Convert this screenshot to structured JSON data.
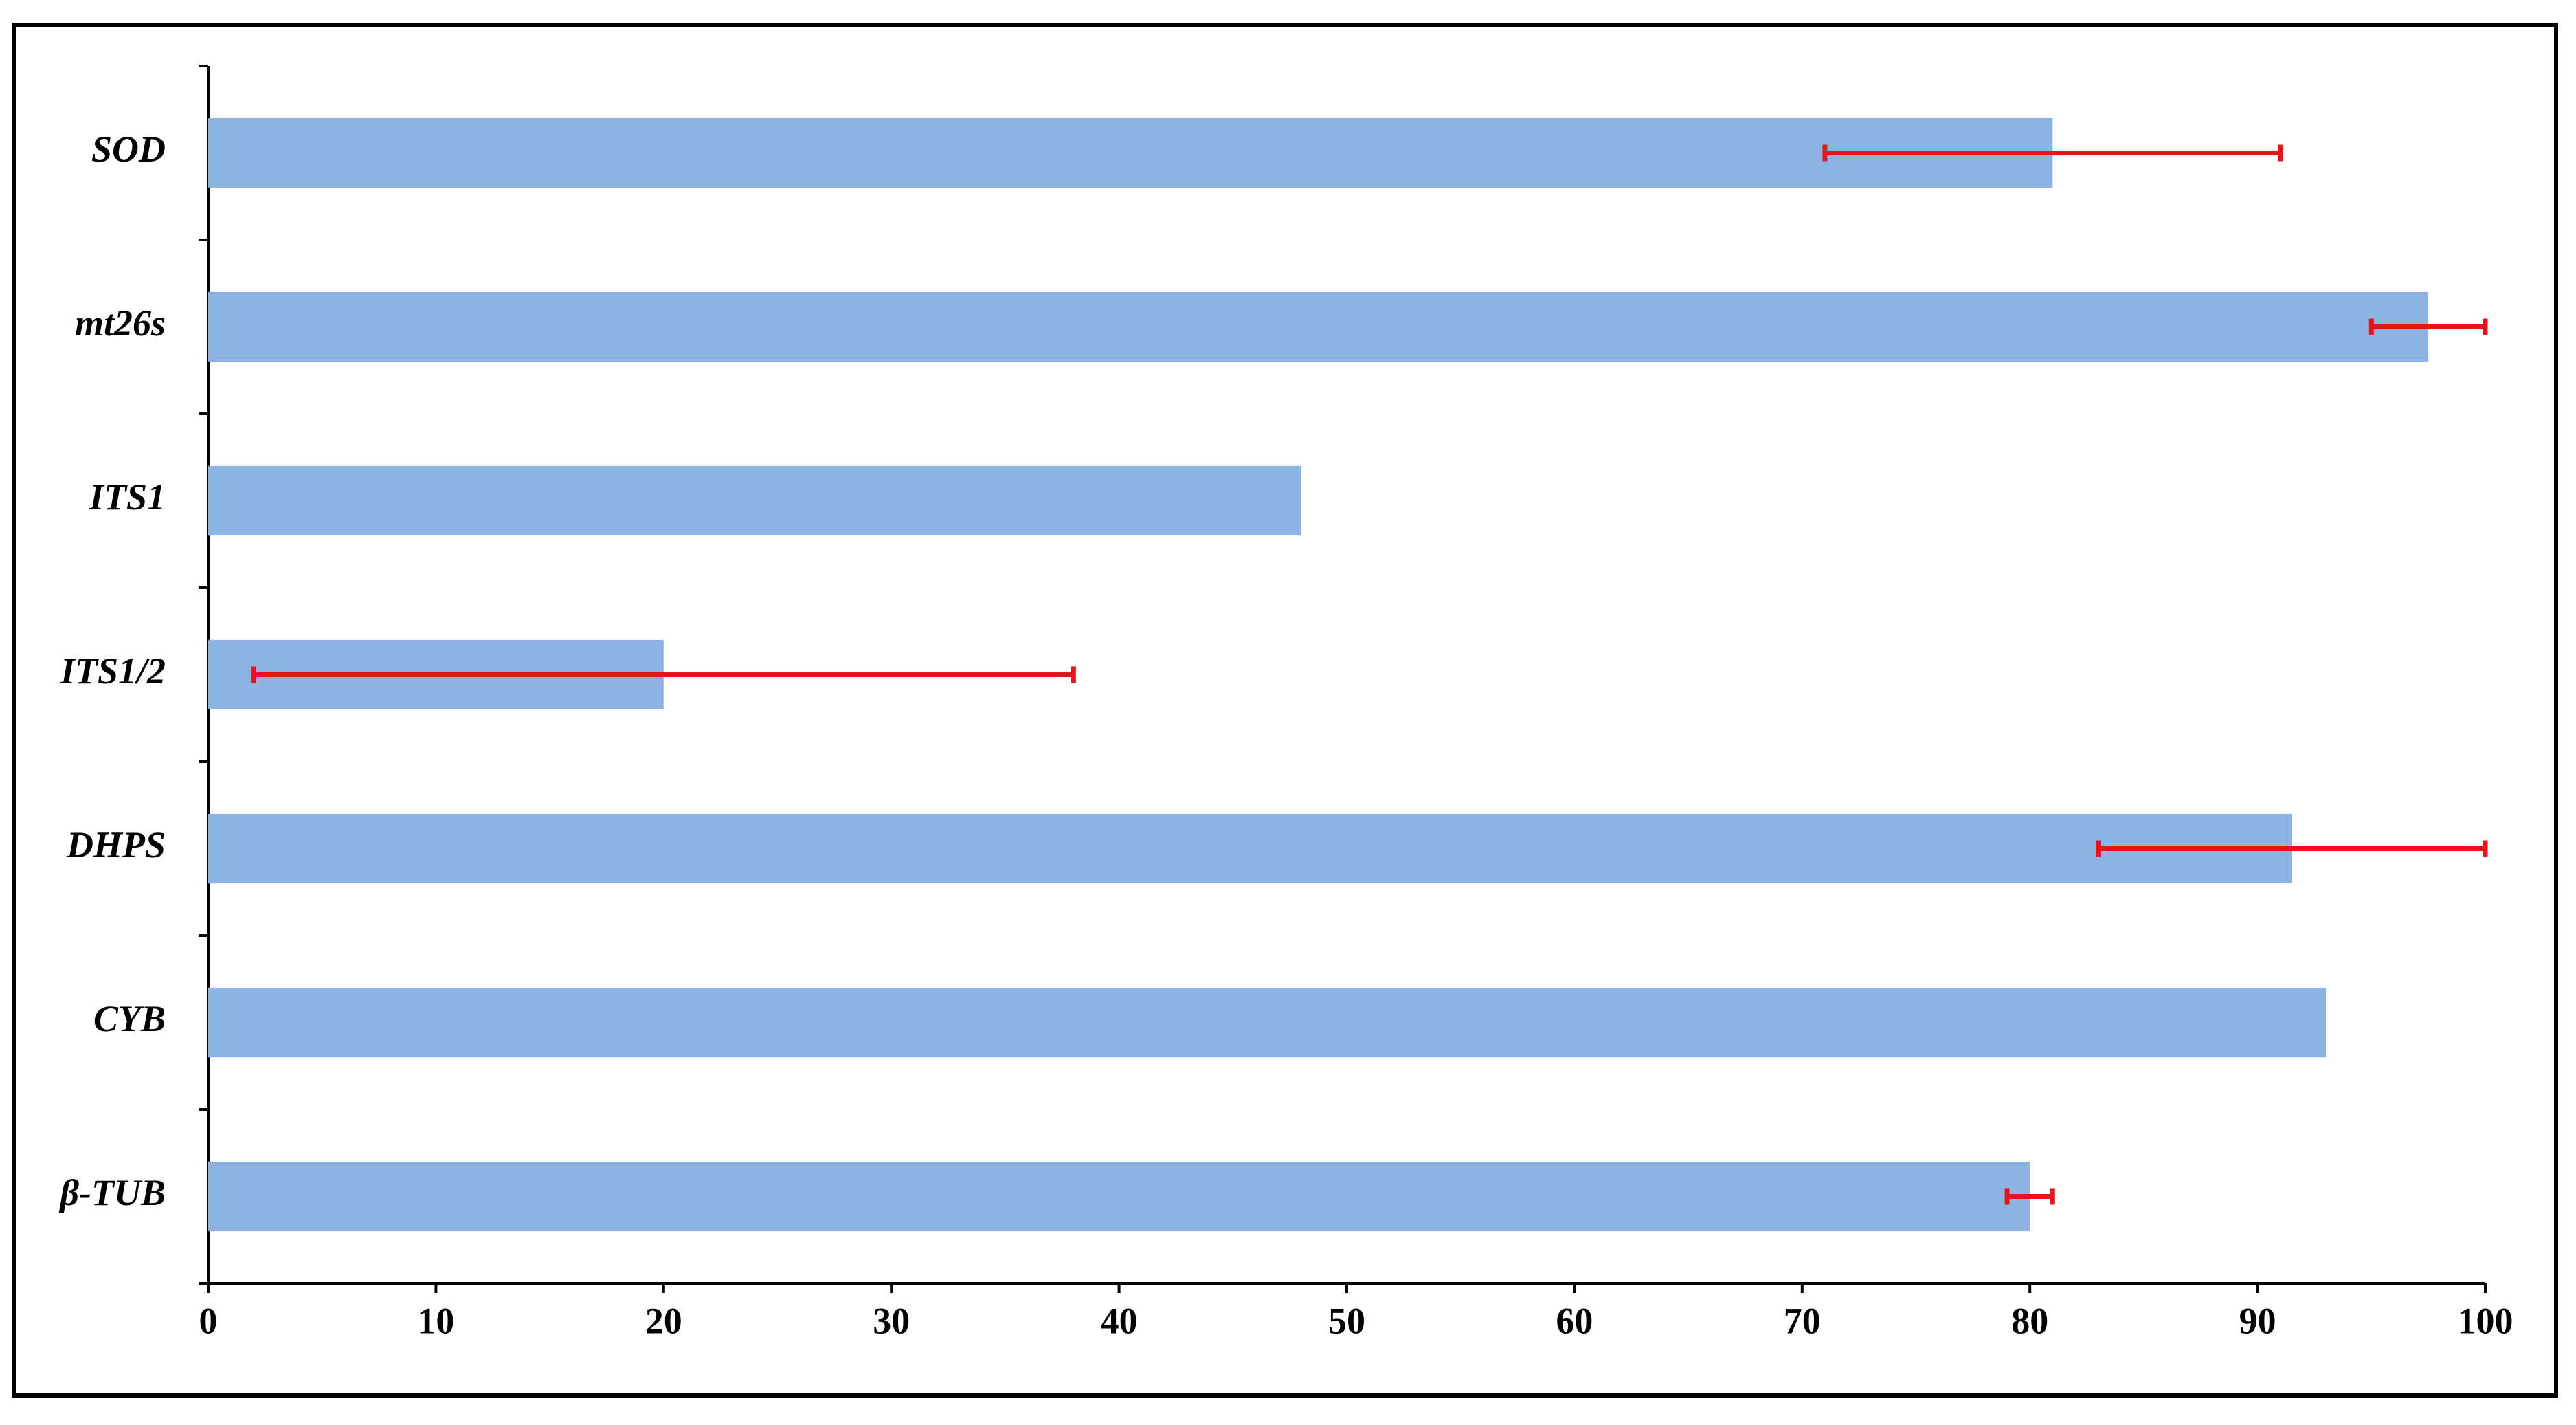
{
  "chart_data": {
    "type": "bar",
    "orientation": "horizontal",
    "categories": [
      "SOD",
      "mt26s",
      "ITS1",
      "ITS1/2",
      "DHPS",
      "CYB",
      "β-TUB"
    ],
    "values": [
      81,
      97.5,
      48,
      20,
      91.5,
      93,
      80
    ],
    "errors": [
      10,
      2.5,
      null,
      18,
      8.5,
      null,
      1
    ],
    "color": "#8db3e2",
    "error_color": "#e8141c",
    "xlim": [
      0,
      100
    ],
    "xticks": [
      0,
      10,
      20,
      30,
      40,
      50,
      60,
      70,
      80,
      90,
      100
    ],
    "grid": false
  }
}
